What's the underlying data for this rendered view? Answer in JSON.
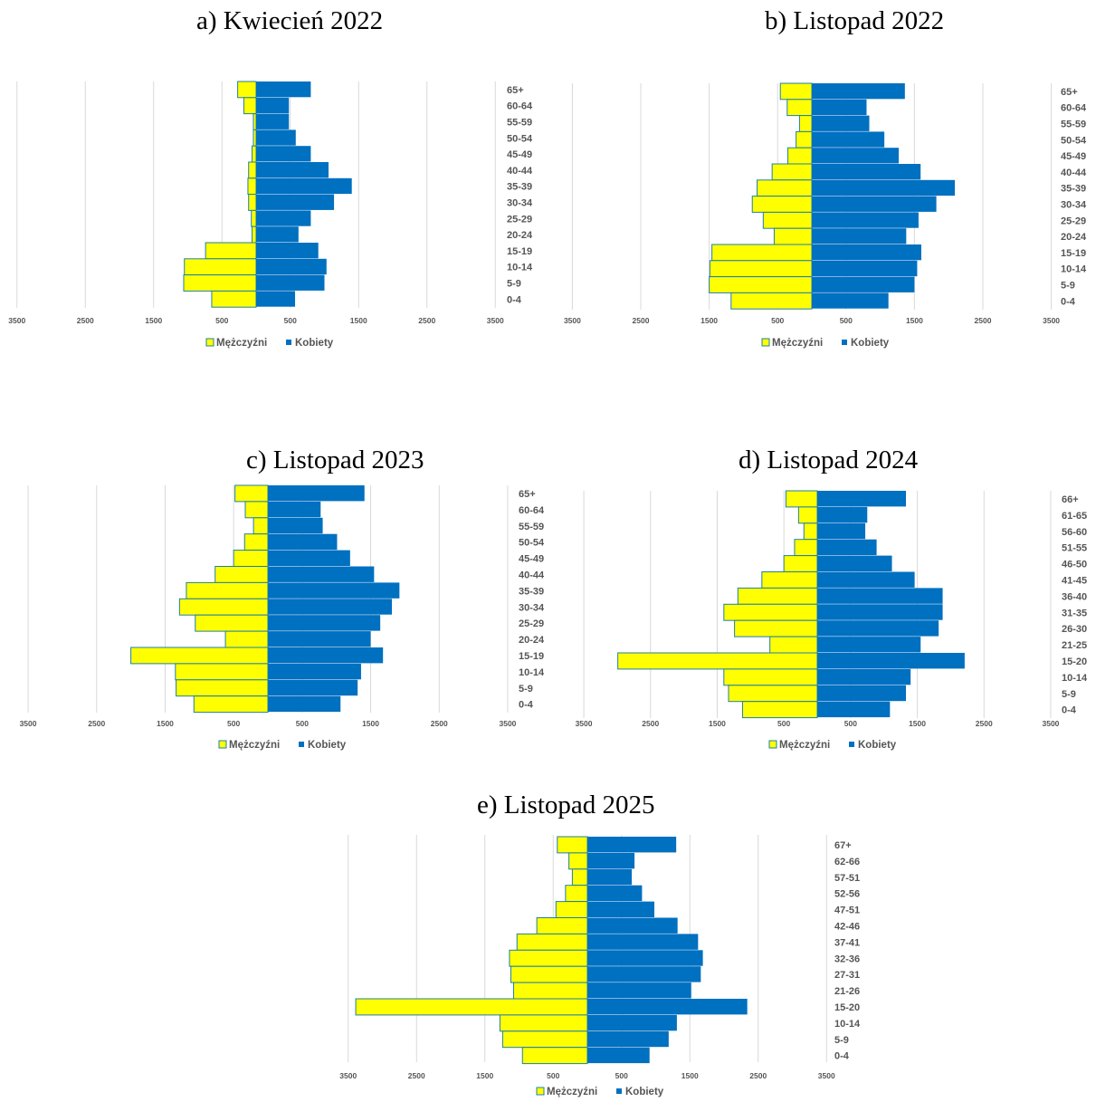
{
  "colors": {
    "men": "#ffff00",
    "men_stroke": "#1f7fa8",
    "women": "#0070c0",
    "grid": "#d9d9d9"
  },
  "legend": {
    "men": "Mężczyźni",
    "women": "Kobiety"
  },
  "chart_data": [
    {
      "type": "bar",
      "orientation": "horizontal-pyramid",
      "title": "a)   Kwiecień 2022",
      "xticks": [
        "3500",
        "2500",
        "1500",
        "500",
        "500",
        "1500",
        "2500",
        "3500"
      ],
      "categories": [
        "65+",
        "60-64",
        "55-59",
        "50-54",
        "45-49",
        "40-44",
        "35-39",
        "30-34",
        "25-29",
        "20-24",
        "15-19",
        "10-14",
        "5-9",
        "0-4"
      ],
      "series": [
        {
          "name": "Mężczyźni",
          "values": [
            270,
            180,
            40,
            40,
            60,
            110,
            120,
            110,
            70,
            60,
            740,
            1050,
            1060,
            650
          ]
        },
        {
          "name": "Kobiety",
          "values": [
            800,
            480,
            480,
            580,
            800,
            1060,
            1400,
            1140,
            800,
            620,
            910,
            1030,
            1000,
            570
          ]
        }
      ]
    },
    {
      "type": "bar",
      "orientation": "horizontal-pyramid",
      "title": "b) Listopad 2022",
      "xticks": [
        "3500",
        "2500",
        "1500",
        "500",
        "500",
        "1500",
        "2500",
        "3500"
      ],
      "categories": [
        "65+",
        "60-64",
        "55-59",
        "50-54",
        "45-49",
        "40-44",
        "35-39",
        "30-34",
        "25-29",
        "20-24",
        "15-19",
        "10-14",
        "5-9",
        "0-4"
      ],
      "series": [
        {
          "name": "Mężczyźni",
          "values": [
            460,
            360,
            180,
            230,
            350,
            580,
            800,
            870,
            710,
            550,
            1460,
            1490,
            1500,
            1180
          ]
        },
        {
          "name": "Kobiety",
          "values": [
            1360,
            800,
            840,
            1060,
            1270,
            1590,
            2090,
            1820,
            1560,
            1380,
            1600,
            1540,
            1500,
            1120
          ]
        }
      ]
    },
    {
      "type": "bar",
      "orientation": "horizontal-pyramid",
      "title": "c)   Listopad 2023",
      "xticks": [
        "3500",
        "2500",
        "1500",
        "500",
        "500",
        "1500",
        "2500",
        "3500"
      ],
      "categories": [
        "65+",
        "60-64",
        "55-59",
        "50-54",
        "45-49",
        "40-44",
        "35-39",
        "30-34",
        "25-29",
        "20-24",
        "15-19",
        "10-14",
        "5-9",
        "0-4"
      ],
      "series": [
        {
          "name": "Mężczyźni",
          "values": [
            480,
            330,
            210,
            340,
            500,
            770,
            1190,
            1290,
            1060,
            620,
            2000,
            1350,
            1340,
            1080
          ]
        },
        {
          "name": "Kobiety",
          "values": [
            1410,
            770,
            800,
            1010,
            1200,
            1550,
            1920,
            1810,
            1640,
            1500,
            1680,
            1360,
            1310,
            1060
          ]
        }
      ]
    },
    {
      "type": "bar",
      "orientation": "horizontal-pyramid",
      "title": "d) Listopad 2024",
      "xticks": [
        "3500",
        "2500",
        "1500",
        "500",
        "500",
        "1500",
        "2500",
        "3500"
      ],
      "categories": [
        "66+",
        "61-65",
        "56-60",
        "51-55",
        "46-50",
        "41-45",
        "36-40",
        "31-35",
        "26-30",
        "21-25",
        "15-20",
        "10-14",
        "5-9",
        "0-4"
      ],
      "series": [
        {
          "name": "Mężczyźni",
          "values": [
            470,
            280,
            200,
            340,
            500,
            830,
            1190,
            1400,
            1240,
            710,
            2990,
            1400,
            1330,
            1120
          ]
        },
        {
          "name": "Kobiety",
          "values": [
            1330,
            750,
            720,
            890,
            1120,
            1460,
            1880,
            1880,
            1820,
            1550,
            2210,
            1400,
            1330,
            1090
          ]
        }
      ]
    },
    {
      "type": "bar",
      "orientation": "horizontal-pyramid",
      "title": "e)   Listopad 2025",
      "xticks": [
        "3500",
        "2500",
        "1500",
        "500",
        "500",
        "1500",
        "2500",
        "3500"
      ],
      "categories": [
        "67+",
        "62-66",
        "57-51",
        "52-56",
        "47-51",
        "42-46",
        "37-41",
        "32-36",
        "27-31",
        "21-26",
        "15-20",
        "10-14",
        "5-9",
        "0-4"
      ],
      "series": [
        {
          "name": "Mężczyźni",
          "values": [
            440,
            270,
            220,
            320,
            460,
            740,
            1030,
            1140,
            1120,
            1080,
            3390,
            1280,
            1240,
            950
          ]
        },
        {
          "name": "Kobiety",
          "values": [
            1300,
            690,
            650,
            800,
            980,
            1320,
            1620,
            1690,
            1660,
            1520,
            2340,
            1310,
            1190,
            910
          ]
        }
      ]
    }
  ]
}
